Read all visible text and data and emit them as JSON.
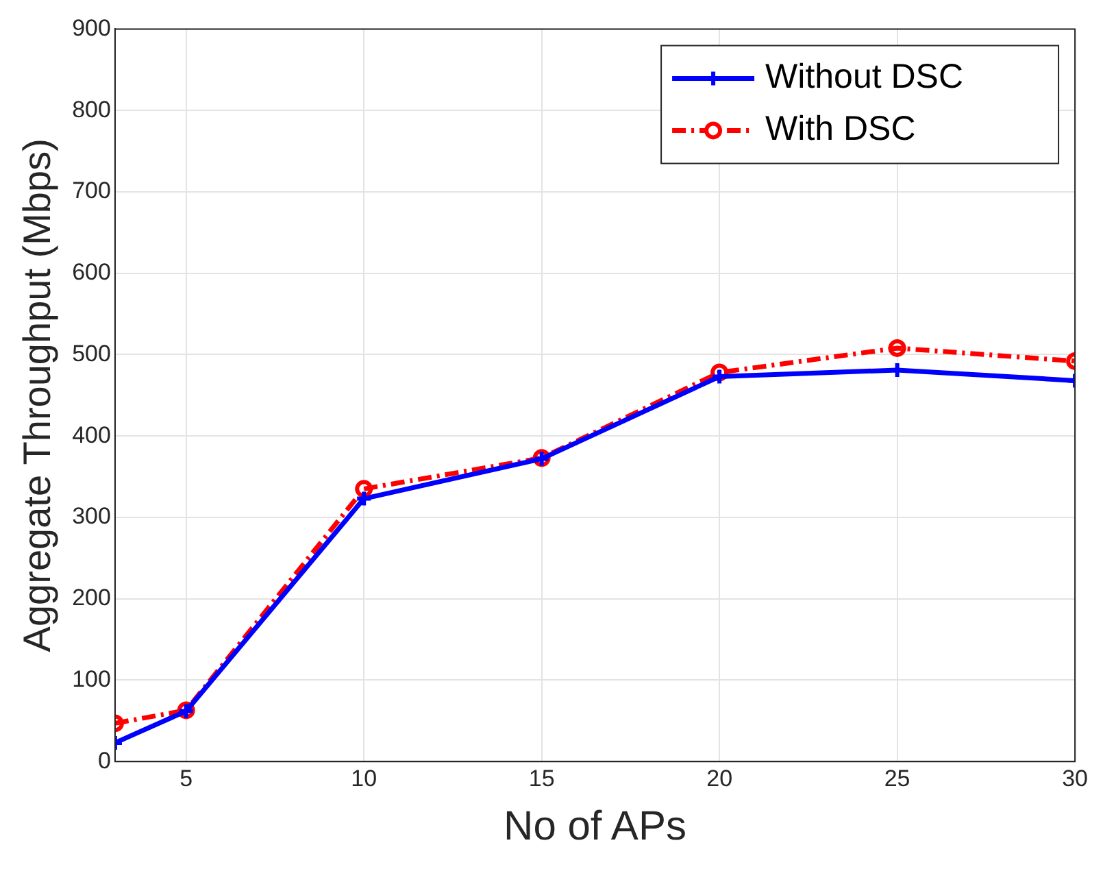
{
  "chart_data": {
    "type": "line",
    "xlabel": "No of APs",
    "ylabel": "Aggregate Throughput (Mbps)",
    "x": [
      3,
      5,
      10,
      15,
      20,
      25,
      30
    ],
    "series": [
      {
        "name": "Without DSC",
        "color": "#0000ff",
        "marker": "cross",
        "line_style": "solid",
        "values": [
          23,
          62,
          323,
          372,
          473,
          481,
          468
        ]
      },
      {
        "name": "With DSC",
        "color": "#ff0000",
        "marker": "circle",
        "line_style": "dashed",
        "values": [
          47,
          63,
          335,
          373,
          478,
          508,
          492
        ]
      }
    ],
    "xlim": [
      3,
      30
    ],
    "xticks": [
      5,
      10,
      15,
      20,
      25,
      30
    ],
    "ylim": [
      0,
      900
    ],
    "yticks": [
      0,
      100,
      200,
      300,
      400,
      500,
      600,
      700,
      800,
      900
    ],
    "grid": true,
    "legend": "top right"
  }
}
